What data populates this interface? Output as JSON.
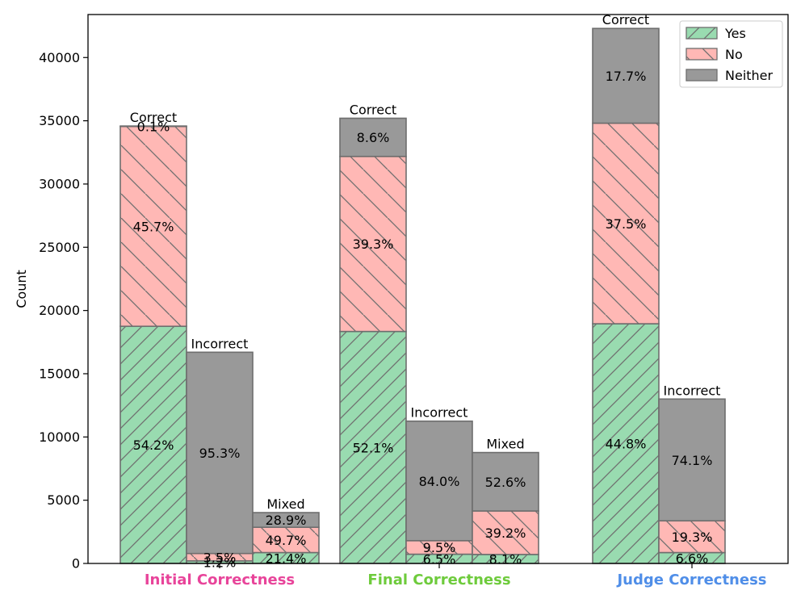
{
  "chart_data": {
    "type": "bar",
    "stacked": true,
    "xlabel": "",
    "ylabel": "Count",
    "ylim": [
      0,
      43400
    ],
    "yticks": [
      0,
      5000,
      10000,
      15000,
      20000,
      25000,
      30000,
      35000,
      40000
    ],
    "legend": {
      "position": "top-right",
      "entries": [
        {
          "name": "Yes",
          "color": "#99dbb0",
          "hatch": "forward"
        },
        {
          "name": "No",
          "color": "#ffb8b5",
          "hatch": "back"
        },
        {
          "name": "Neither",
          "color": "#999999",
          "hatch": "none"
        }
      ]
    },
    "groups": [
      {
        "label": "Initial Correctness",
        "color": "#e8449a",
        "bars": [
          {
            "name": "Correct",
            "segments": [
              {
                "series": "Yes",
                "value": 18750,
                "label": "54.2%"
              },
              {
                "series": "No",
                "value": 15800,
                "label": "45.7%"
              },
              {
                "series": "Neither",
                "value": 35,
                "label": "0.1%"
              }
            ]
          },
          {
            "name": "Incorrect",
            "segments": [
              {
                "series": "Yes",
                "value": 200,
                "label": "1.2%"
              },
              {
                "series": "No",
                "value": 585,
                "label": "3.5%"
              },
              {
                "series": "Neither",
                "value": 15915,
                "label": "95.3%"
              }
            ]
          },
          {
            "name": "Mixed",
            "segments": [
              {
                "series": "Yes",
                "value": 860,
                "label": "21.4%"
              },
              {
                "series": "No",
                "value": 2000,
                "label": "49.7%"
              },
              {
                "series": "Neither",
                "value": 1160,
                "label": "28.9%"
              }
            ]
          }
        ]
      },
      {
        "label": "Final Correctness",
        "color": "#6ecb3c",
        "bars": [
          {
            "name": "Correct",
            "segments": [
              {
                "series": "Yes",
                "value": 18340,
                "label": "52.1%"
              },
              {
                "series": "No",
                "value": 13840,
                "label": "39.3%"
              },
              {
                "series": "Neither",
                "value": 3020,
                "label": "8.6%"
              }
            ]
          },
          {
            "name": "Incorrect",
            "segments": [
              {
                "series": "Yes",
                "value": 730,
                "label": "6.5%"
              },
              {
                "series": "No",
                "value": 1070,
                "label": "9.5%"
              },
              {
                "series": "Neither",
                "value": 9450,
                "label": "84.0%"
              }
            ]
          },
          {
            "name": "Mixed",
            "segments": [
              {
                "series": "Yes",
                "value": 710,
                "label": "8.1%"
              },
              {
                "series": "No",
                "value": 3440,
                "label": "39.2%"
              },
              {
                "series": "Neither",
                "value": 4620,
                "label": "52.6%"
              }
            ]
          }
        ]
      },
      {
        "label": "Judge Correctness",
        "color": "#4f8ee8",
        "bars": [
          {
            "name": "Correct",
            "segments": [
              {
                "series": "Yes",
                "value": 18950,
                "label": "44.8%"
              },
              {
                "series": "No",
                "value": 15860,
                "label": "37.5%"
              },
              {
                "series": "Neither",
                "value": 7490,
                "label": "17.7%"
              }
            ]
          },
          {
            "name": "Incorrect",
            "segments": [
              {
                "series": "Yes",
                "value": 860,
                "label": "6.6%"
              },
              {
                "series": "No",
                "value": 2510,
                "label": "19.3%"
              },
              {
                "series": "Neither",
                "value": 9630,
                "label": "74.1%"
              }
            ]
          }
        ]
      }
    ]
  }
}
